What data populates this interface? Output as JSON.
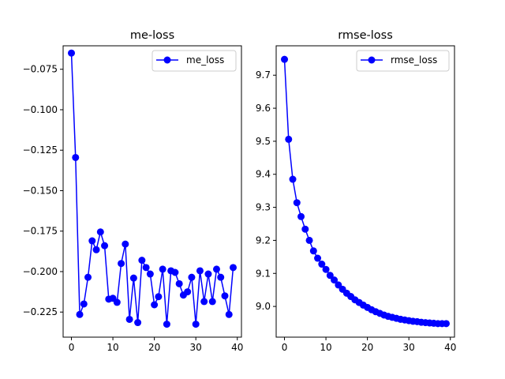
{
  "chart_data": [
    {
      "type": "line",
      "title": "me-loss",
      "xlabel": "",
      "ylabel": "",
      "xlim": [
        -2.0,
        41.0
      ],
      "ylim": [
        -0.2405,
        -0.0605
      ],
      "xticks": [
        0,
        10,
        20,
        30,
        40
      ],
      "yticks": [
        -0.075,
        -0.1,
        -0.125,
        -0.15,
        -0.175,
        -0.2,
        -0.225
      ],
      "ytick_labels": [
        "−0.075",
        "−0.100",
        "−0.125",
        "−0.150",
        "−0.175",
        "−0.200",
        "−0.225"
      ],
      "legend_position": "upper right",
      "grid": false,
      "color": "#0000ff",
      "series": [
        {
          "name": "me_loss",
          "x": [
            0,
            1,
            2,
            3,
            4,
            5,
            6,
            7,
            8,
            9,
            10,
            11,
            12,
            13,
            14,
            15,
            16,
            17,
            18,
            19,
            20,
            21,
            22,
            23,
            24,
            25,
            26,
            27,
            28,
            29,
            30,
            31,
            32,
            33,
            34,
            35,
            36,
            37,
            38,
            39
          ],
          "y": [
            -0.065,
            -0.1295,
            -0.2265,
            -0.22,
            -0.2035,
            -0.181,
            -0.1865,
            -0.1755,
            -0.184,
            -0.217,
            -0.2165,
            -0.219,
            -0.195,
            -0.183,
            -0.2295,
            -0.204,
            -0.2315,
            -0.193,
            -0.1975,
            -0.2015,
            -0.2205,
            -0.2155,
            -0.1985,
            -0.2325,
            -0.1995,
            -0.2005,
            -0.2075,
            -0.2145,
            -0.2125,
            -0.2035,
            -0.2325,
            -0.1995,
            -0.2185,
            -0.2015,
            -0.2185,
            -0.1985,
            -0.2035,
            -0.215,
            -0.2265,
            -0.1975
          ]
        }
      ]
    },
    {
      "type": "line",
      "title": "rmse-loss",
      "xlabel": "",
      "ylabel": "",
      "xlim": [
        -2.0,
        41.0
      ],
      "ylim": [
        8.907,
        9.789
      ],
      "xticks": [
        0,
        10,
        20,
        30,
        40
      ],
      "yticks": [
        9.0,
        9.1,
        9.2,
        9.3,
        9.4,
        9.5,
        9.6,
        9.7
      ],
      "ytick_labels": [
        "9.0",
        "9.1",
        "9.2",
        "9.3",
        "9.4",
        "9.5",
        "9.6",
        "9.7"
      ],
      "legend_position": "upper right",
      "grid": false,
      "color": "#0000ff",
      "series": [
        {
          "name": "rmse_loss",
          "x": [
            0,
            1,
            2,
            3,
            4,
            5,
            6,
            7,
            8,
            9,
            10,
            11,
            12,
            13,
            14,
            15,
            16,
            17,
            18,
            19,
            20,
            21,
            22,
            23,
            24,
            25,
            26,
            27,
            28,
            29,
            30,
            31,
            32,
            33,
            34,
            35,
            36,
            37,
            38,
            39
          ],
          "y": [
            9.748,
            9.506,
            9.385,
            9.314,
            9.272,
            9.234,
            9.2,
            9.168,
            9.146,
            9.128,
            9.112,
            9.094,
            9.08,
            9.065,
            9.052,
            9.04,
            9.03,
            9.02,
            9.012,
            9.004,
            8.997,
            8.99,
            8.984,
            8.979,
            8.974,
            8.97,
            8.967,
            8.964,
            8.961,
            8.959,
            8.957,
            8.955,
            8.954,
            8.952,
            8.951,
            8.95,
            8.949,
            8.948,
            8.948,
            8.948
          ]
        }
      ]
    }
  ]
}
